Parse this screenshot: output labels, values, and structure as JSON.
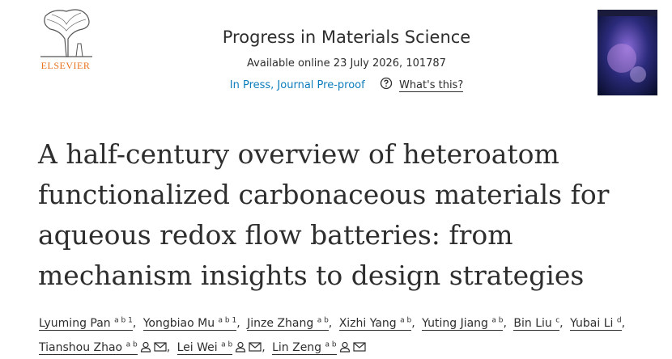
{
  "header": {
    "publisher": "ELSEVIER",
    "journal": "Progress in Materials Science",
    "availability": "Available online 23 July 2026, 101787",
    "status": "In Press, Journal Pre-proof",
    "help_link": "What's this?"
  },
  "article": {
    "title": "A half-century overview of heteroatom functionalized carbonaceous materials for aqueous redox flow batteries: from mechanism insights to design strategies",
    "authors": [
      {
        "name": "Lyuming Pan",
        "affiliations": "a b 1",
        "contact": false
      },
      {
        "name": "Yongbiao Mu",
        "affiliations": "a b 1",
        "contact": false
      },
      {
        "name": "Jinze Zhang",
        "affiliations": "a b",
        "contact": false
      },
      {
        "name": "Xizhi Yang",
        "affiliations": "a b",
        "contact": false
      },
      {
        "name": "Yuting Jiang",
        "affiliations": "a b",
        "contact": false
      },
      {
        "name": "Bin Liu",
        "affiliations": "c",
        "contact": false
      },
      {
        "name": "Yubai Li",
        "affiliations": "d",
        "contact": false
      },
      {
        "name": "Tianshou Zhao",
        "affiliations": "a b",
        "contact": true
      },
      {
        "name": "Lei Wei",
        "affiliations": "a b",
        "contact": true
      },
      {
        "name": "Lin Zeng",
        "affiliations": "a b",
        "contact": true
      }
    ]
  }
}
